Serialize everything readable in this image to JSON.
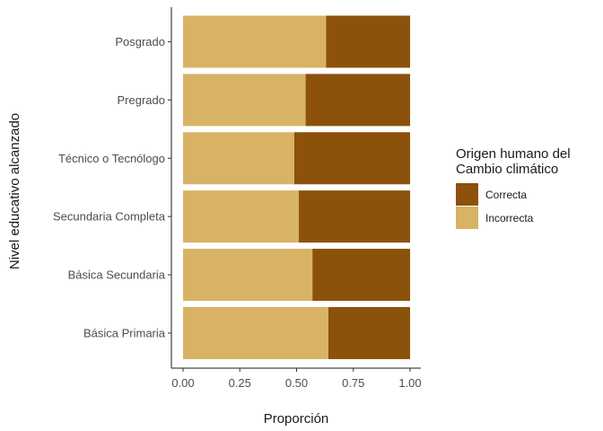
{
  "chart_data": {
    "type": "bar",
    "orientation": "horizontal",
    "stacked": true,
    "categories": [
      "Posgrado",
      "Pregrado",
      "Técnico o Tecnólogo",
      "Secundaria Completa",
      "Básica Secundaria",
      "Básica Primaria"
    ],
    "series": [
      {
        "name": "Incorrecta",
        "values": [
          0.63,
          0.54,
          0.49,
          0.51,
          0.57,
          0.64
        ],
        "color": "#d8b365"
      },
      {
        "name": "Correcta",
        "values": [
          0.37,
          0.46,
          0.51,
          0.49,
          0.43,
          0.36
        ],
        "color": "#8c510a"
      }
    ],
    "xlabel": "Proporción",
    "ylabel": "Nivel educativo alcanzado",
    "xlim": [
      0,
      1
    ],
    "xticks": [
      "0.00",
      "0.25",
      "0.50",
      "0.75",
      "1.00"
    ],
    "grid": false,
    "legend": {
      "title_lines": [
        "Origen humano del",
        "Cambio climático"
      ],
      "entries": [
        "Correcta",
        "Incorrecta"
      ],
      "placement": "right"
    }
  }
}
